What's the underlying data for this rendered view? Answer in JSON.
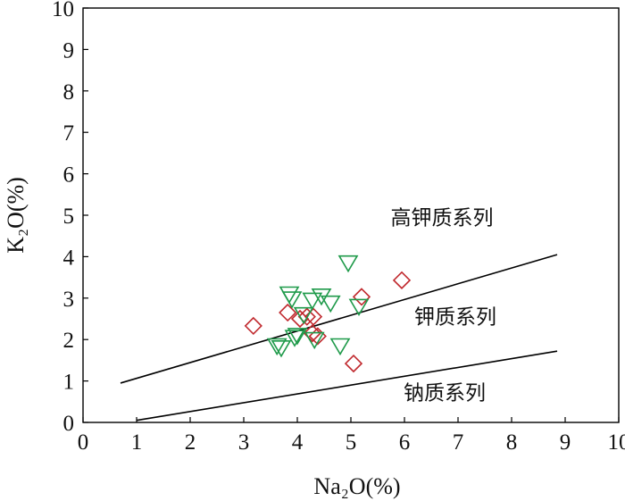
{
  "chart_data": {
    "type": "scatter",
    "xlabel": "Na₂O(%)",
    "ylabel": "K₂O(%)",
    "xlim": [
      0,
      10
    ],
    "ylim": [
      0,
      10
    ],
    "xticks": [
      "0",
      "1",
      "2",
      "3",
      "4",
      "5",
      "6",
      "7",
      "8",
      "9",
      "10"
    ],
    "yticks": [
      "0",
      "1",
      "2",
      "3",
      "4",
      "5",
      "6",
      "7",
      "8",
      "9",
      "10"
    ],
    "grid": false,
    "legend": "none",
    "colors": {
      "diamond": "#c0282d",
      "triangle": "#1f9a4a",
      "line": "#000000"
    },
    "series": [
      {
        "marker": "diamond",
        "x": [
          3.18,
          3.82,
          4.05,
          4.18,
          4.3,
          4.28,
          4.38,
          5.2,
          5.05,
          5.95
        ],
        "y": [
          2.33,
          2.65,
          2.5,
          2.55,
          2.55,
          2.15,
          2.08,
          3.03,
          1.42,
          3.43
        ]
      },
      {
        "marker": "triangle-down",
        "x": [
          3.85,
          3.9,
          3.95,
          4.28,
          4.45,
          4.62,
          4.95,
          5.15,
          4.12,
          4.32,
          4.0,
          3.62,
          3.7,
          4.8
        ],
        "y": [
          3.1,
          2.98,
          2.05,
          2.95,
          3.05,
          2.88,
          3.85,
          2.8,
          2.6,
          2.0,
          2.1,
          1.85,
          1.8,
          1.85
        ]
      }
    ],
    "lines": [
      {
        "name": "upper-boundary",
        "x": [
          0.7,
          8.85
        ],
        "y": [
          0.95,
          4.05
        ]
      },
      {
        "name": "lower-boundary",
        "x": [
          1.0,
          8.85
        ],
        "y": [
          0.05,
          1.72
        ]
      }
    ],
    "region_labels": [
      {
        "key": "high_k",
        "text": "高钾质系列",
        "x": 6.7,
        "y": 4.95
      },
      {
        "key": "k",
        "text": "钾质系列",
        "x": 6.95,
        "y": 2.55
      },
      {
        "key": "na",
        "text": "钠质系列",
        "x": 6.75,
        "y": 0.72
      }
    ]
  }
}
